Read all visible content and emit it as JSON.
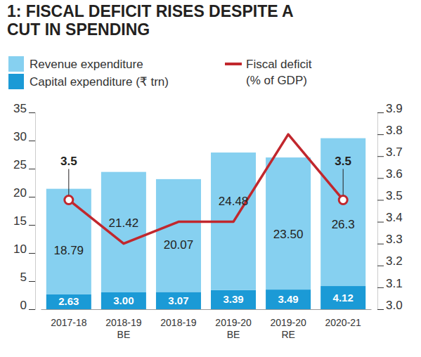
{
  "chart_data": {
    "type": "bar",
    "title": "1: FISCAL DEFICIT RISES DESPITE A CUT IN SPENDING",
    "stacked": true,
    "data_labels": true,
    "legend": "top-left",
    "categories": [
      "2017-18",
      "2018-19 BE",
      "2018-19",
      "2019-20 BE",
      "2019-20 RE",
      "2020-21"
    ],
    "series": [
      {
        "name": "Revenue expenditure",
        "color": "#86d0f0",
        "values": [
          18.79,
          21.42,
          20.07,
          24.48,
          23.5,
          26.3
        ],
        "value_labels": [
          "18.79",
          "21.42",
          "20.07",
          "24.48",
          "23.50",
          "26.3"
        ]
      },
      {
        "name": "Capital expenditure (₹ trn)",
        "color": "#1b9ad6",
        "values": [
          2.63,
          3,
          3.07,
          3.39,
          3.49,
          4.12
        ],
        "value_labels": [
          "2.63",
          "3.00",
          "3.07",
          "3.39",
          "3.49",
          "4.12"
        ]
      },
      {
        "name": "Fiscal deficit (% of GDP)",
        "type": "line",
        "axis": "y2",
        "color": "#c1272d",
        "values": [
          3.5,
          3.3,
          3.4,
          3.4,
          3.8,
          3.5
        ],
        "value_labels": [
          "3.5",
          null,
          null,
          null,
          null,
          "3.5"
        ]
      }
    ],
    "ylim": [
      0,
      35
    ],
    "yticks": [
      0,
      5,
      10,
      15,
      20,
      25,
      30,
      35
    ],
    "y2lim": [
      3,
      3.9
    ],
    "y2ticks": [
      {
        "value": 3,
        "label": "3.0"
      },
      3.1,
      3.2,
      3.3,
      3.4,
      3.5,
      3.6,
      3.7,
      3.8,
      3.9
    ]
  }
}
